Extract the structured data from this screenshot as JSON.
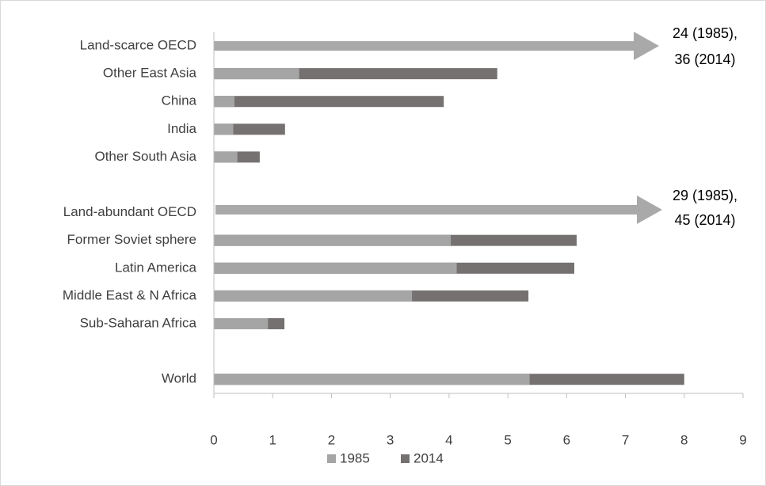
{
  "chart_data": {
    "type": "bar",
    "orientation": "horizontal",
    "categories": [
      "Land-scarce OECD",
      "Other East Asia",
      "China",
      "India",
      "Other South Asia",
      null,
      "Land-abundant OECD",
      "Former Soviet sphere",
      "Latin America",
      "Middle East & N Africa",
      "Sub-Saharan Africa",
      null,
      "World"
    ],
    "series": [
      {
        "name": "1985",
        "color": "#a5a5a5",
        "values": [
          null,
          1.45,
          0.35,
          0.33,
          0.4,
          null,
          null,
          4.03,
          4.13,
          3.37,
          0.92,
          null,
          5.37
        ]
      },
      {
        "name": "2014",
        "color": "#767171",
        "values": [
          null,
          4.82,
          3.91,
          1.21,
          0.78,
          null,
          null,
          6.17,
          6.13,
          5.35,
          1.2,
          null,
          8.0
        ]
      }
    ],
    "xlim": [
      0,
      9
    ],
    "xticks": [
      0,
      1,
      2,
      3,
      4,
      5,
      6,
      7,
      8,
      9
    ],
    "annotations": [
      [
        "24 (1985),",
        "36 (2014)"
      ],
      [
        "29 (1985),",
        "45 (2014)"
      ]
    ],
    "legend": "bottom"
  }
}
